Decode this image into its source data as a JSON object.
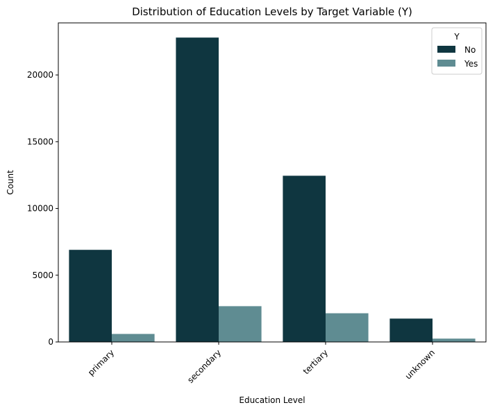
{
  "chart_data": {
    "type": "bar",
    "title": "Distribution of Education Levels by Target Variable (Y)",
    "xlabel": "Education Level",
    "ylabel": "Count",
    "categories": [
      "primary",
      "secondary",
      "tertiary",
      "unknown"
    ],
    "series": [
      {
        "name": "No",
        "color": "#0f3640",
        "values": [
          6900,
          22800,
          12450,
          1750
        ]
      },
      {
        "name": "Yes",
        "color": "#5f8c92",
        "values": [
          600,
          2680,
          2150,
          250
        ]
      }
    ],
    "ylim": [
      0,
      23900
    ],
    "yticks": [
      0,
      5000,
      10000,
      15000,
      20000
    ],
    "legend": {
      "title": "Y",
      "placement": "top-right"
    },
    "grid": false
  }
}
